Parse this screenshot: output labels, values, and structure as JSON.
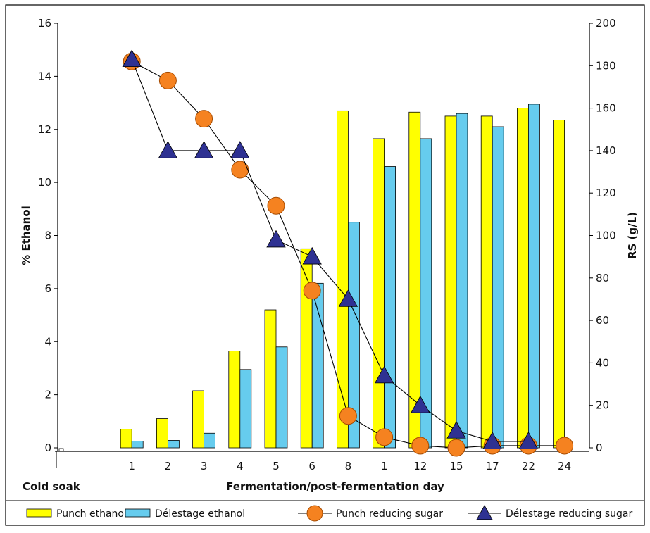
{
  "chart_data": {
    "type": "bar",
    "title": "",
    "xlabel": "Fermentation/post-fermentation day",
    "extra_label": "Cold soak",
    "ylabel_left": "% Ethanol",
    "ylabel_right": "RS (g/L)",
    "ylim_left": [
      0,
      16
    ],
    "ylim_right": [
      0,
      200
    ],
    "yticks_left": [
      "0",
      "2",
      "4",
      "6",
      "8",
      "10",
      "12",
      "14",
      "16"
    ],
    "yticks_right": [
      "0",
      "20",
      "40",
      "60",
      "80",
      "100",
      "120",
      "140",
      "160",
      "180",
      "200"
    ],
    "categories": [
      "1",
      "2",
      "3",
      "4",
      "5",
      "6",
      "8",
      "1",
      "12",
      "15",
      "17",
      "22",
      "24"
    ],
    "grid": false,
    "legend_position": "bottom",
    "series": [
      {
        "name": "Punch ethanol",
        "kind": "bar",
        "axis": "left",
        "color": "#ffff00",
        "values": [
          0.7,
          1.1,
          2.15,
          3.65,
          5.2,
          7.5,
          12.7,
          11.65,
          12.65,
          12.5,
          12.5,
          12.8,
          12.35
        ]
      },
      {
        "name": "Délestage ethanol",
        "kind": "bar",
        "axis": "left",
        "color": "#66ccee",
        "values": [
          0.25,
          0.28,
          0.55,
          2.95,
          3.8,
          6.2,
          8.5,
          10.6,
          11.65,
          12.6,
          12.1,
          12.95,
          null
        ]
      },
      {
        "name": "Punch reducing sugar",
        "kind": "line",
        "marker": "circle",
        "axis": "right",
        "color": "#f58220",
        "values": [
          182,
          173,
          155,
          131,
          114,
          74,
          15,
          5,
          1,
          0,
          1,
          1,
          1
        ]
      },
      {
        "name": "Délestage reducing sugar",
        "kind": "line",
        "marker": "triangle",
        "axis": "right",
        "color": "#2e3192",
        "values": [
          183,
          140,
          140,
          140,
          98,
          90,
          70,
          34,
          20,
          8,
          3,
          3,
          null
        ]
      }
    ]
  }
}
